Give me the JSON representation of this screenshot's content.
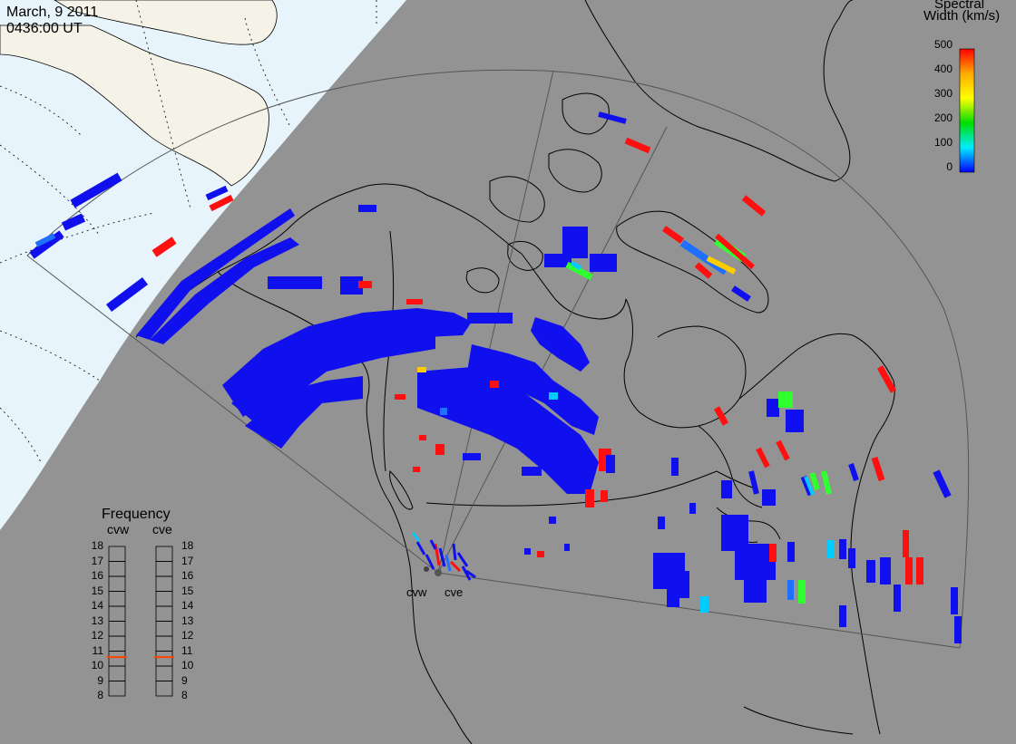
{
  "header": {
    "date": "March, 9 2011",
    "time": "0436:00 UT"
  },
  "colorbar": {
    "title_line1": "Spectral",
    "title_line2": "Width (km/s)",
    "ticks": [
      "500",
      "400",
      "300",
      "200",
      "100",
      "0"
    ],
    "colors": [
      "#ff0000",
      "#ffaa00",
      "#ffff00",
      "#00dd00",
      "#00eeff",
      "#0000ff"
    ]
  },
  "frequency_panel": {
    "title": "Frequency",
    "radars": [
      {
        "label": "cvw",
        "freq_mhz": 10.6
      },
      {
        "label": "cve",
        "freq_mhz": 10.6
      }
    ],
    "scale": [
      "18",
      "17",
      "16",
      "15",
      "14",
      "13",
      "12",
      "11",
      "10",
      "9",
      "8"
    ]
  },
  "radar_sites": [
    {
      "label": "cvw"
    },
    {
      "label": "cve"
    }
  ],
  "colors": {
    "ocean_dark": "#939393",
    "ocean_daylight": "#e8f4fb",
    "land_daylight": "#f5f3e8",
    "fov_line": "#555555",
    "frequency_marker": "#ff4400"
  }
}
